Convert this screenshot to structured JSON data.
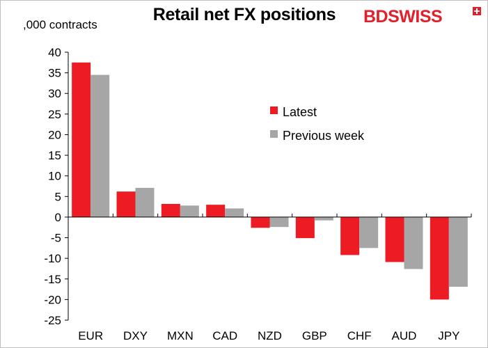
{
  "header": {
    "title": "Retail net FX positions",
    "unit_label": ",000 contracts",
    "logo_text": "BDSWISS"
  },
  "chart_data": {
    "type": "bar",
    "categories": [
      "EUR",
      "DXY",
      "MXN",
      "CAD",
      "NZD",
      "GBP",
      "CHF",
      "AUD",
      "JPY"
    ],
    "series": [
      {
        "name": "Latest",
        "color": "#ed1c24",
        "values": [
          37.5,
          6.2,
          3.2,
          3.0,
          -2.6,
          -5.1,
          -9.2,
          -10.9,
          -20.0
        ]
      },
      {
        "name": "Previous week",
        "color": "#a6a6a6",
        "values": [
          34.5,
          7.1,
          2.8,
          2.1,
          -2.4,
          -0.8,
          -7.5,
          -12.6,
          -16.9
        ]
      }
    ],
    "ylim": [
      -25,
      40
    ],
    "yticks": [
      40,
      35,
      30,
      25,
      20,
      15,
      10,
      5,
      0,
      -5,
      -10,
      -15,
      -20,
      -25
    ],
    "grid": false,
    "legend_position": "middle-right"
  }
}
